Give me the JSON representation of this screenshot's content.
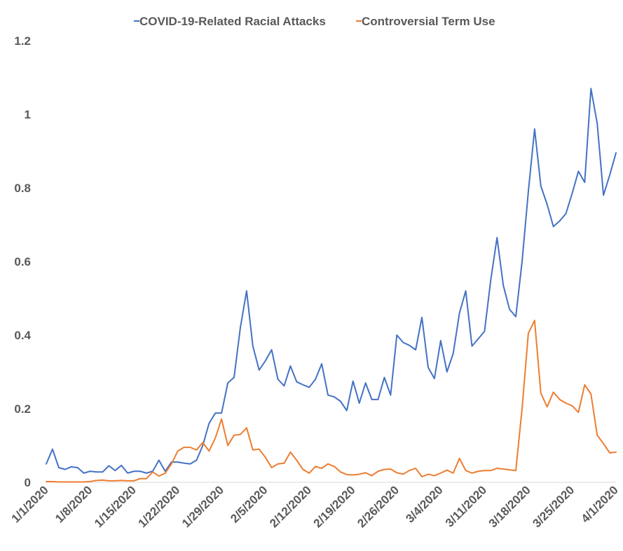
{
  "chart_data": {
    "type": "line",
    "title": "",
    "xlabel": "",
    "ylabel": "",
    "ylim": [
      0,
      1.2
    ],
    "yticks": [
      "0",
      "0.2",
      "0.4",
      "0.6",
      "0.8",
      "1",
      "1.2"
    ],
    "ytick_values": [
      0,
      0.2,
      0.4,
      0.6,
      0.8,
      1.0,
      1.2
    ],
    "xtick_labels": [
      "1/1/2020",
      "1/8/2020",
      "1/15/2020",
      "1/22/2020",
      "1/29/2020",
      "2/5/2020",
      "2/12/2020",
      "2/19/2020",
      "2/26/2020",
      "3/4/2020",
      "3/11/2020",
      "3/18/2020",
      "3/25/2020",
      "4/1/2020"
    ],
    "xtick_days": [
      0,
      7,
      14,
      21,
      28,
      35,
      42,
      49,
      56,
      63,
      70,
      77,
      84,
      91
    ],
    "x_range_days": [
      0,
      91
    ],
    "legend_position": "top",
    "colors": {
      "racial_attacks": "#4472C4",
      "term_use": "#ED7D31",
      "axis": "#D9D9D9"
    },
    "series": [
      {
        "name": "COVID-19-Related Racial Attacks",
        "color": "#4472C4",
        "values": [
          0.05,
          0.09,
          0.04,
          0.035,
          0.042,
          0.04,
          0.025,
          0.03,
          0.028,
          0.028,
          0.045,
          0.032,
          0.046,
          0.025,
          0.03,
          0.03,
          0.025,
          0.03,
          0.06,
          0.03,
          0.055,
          0.055,
          0.052,
          0.05,
          0.06,
          0.1,
          0.16,
          0.188,
          0.188,
          0.27,
          0.285,
          0.42,
          0.52,
          0.37,
          0.305,
          0.33,
          0.36,
          0.28,
          0.262,
          0.316,
          0.273,
          0.265,
          0.258,
          0.28,
          0.322,
          0.237,
          0.232,
          0.22,
          0.195,
          0.275,
          0.215,
          0.27,
          0.225,
          0.225,
          0.285,
          0.237,
          0.4,
          0.38,
          0.372,
          0.36,
          0.448,
          0.312,
          0.282,
          0.385,
          0.3,
          0.35,
          0.46,
          0.52,
          0.37,
          0.39,
          0.41,
          0.55,
          0.665,
          0.535,
          0.47,
          0.45,
          0.6,
          0.79,
          0.96,
          0.805,
          0.755,
          0.695,
          0.71,
          0.73,
          0.785,
          0.845,
          0.815,
          1.07,
          0.975,
          0.78,
          0.835,
          0.895
        ]
      },
      {
        "name": "Controversial Term Use",
        "color": "#ED7D31",
        "values": [
          0.002,
          0.002,
          0.001,
          0.001,
          0.001,
          0.001,
          0.001,
          0.002,
          0.005,
          0.006,
          0.004,
          0.004,
          0.005,
          0.004,
          0.004,
          0.01,
          0.01,
          0.028,
          0.017,
          0.025,
          0.05,
          0.085,
          0.095,
          0.095,
          0.088,
          0.108,
          0.085,
          0.12,
          0.172,
          0.1,
          0.128,
          0.13,
          0.148,
          0.088,
          0.09,
          0.068,
          0.04,
          0.05,
          0.052,
          0.082,
          0.06,
          0.035,
          0.025,
          0.043,
          0.038,
          0.05,
          0.043,
          0.028,
          0.021,
          0.02,
          0.022,
          0.026,
          0.018,
          0.03,
          0.035,
          0.036,
          0.026,
          0.022,
          0.032,
          0.038,
          0.015,
          0.022,
          0.018,
          0.025,
          0.033,
          0.025,
          0.065,
          0.032,
          0.025,
          0.03,
          0.032,
          0.032,
          0.038,
          0.036,
          0.034,
          0.032,
          0.2,
          0.405,
          0.44,
          0.242,
          0.205,
          0.245,
          0.225,
          0.215,
          0.208,
          0.19,
          0.265,
          0.24,
          0.128,
          0.105,
          0.08,
          0.082
        ]
      }
    ]
  }
}
